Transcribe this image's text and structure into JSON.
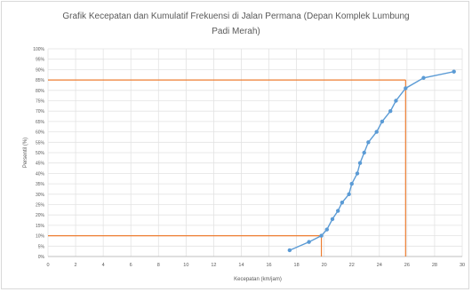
{
  "chart_data": {
    "type": "line",
    "title_lines": [
      "Grafik Kecepatan dan Kumulatif Frekuensi di Jalan Permana (Depan Komplek Lumbung",
      "Padi Merah)"
    ],
    "xlabel": "Kecepatan (km/jam)",
    "ylabel": "Persentil (%)",
    "xlim": [
      0,
      30
    ],
    "ylim": [
      0,
      100
    ],
    "x_ticks": [
      0,
      2,
      4,
      6,
      8,
      10,
      12,
      14,
      16,
      18,
      20,
      22,
      24,
      26,
      28,
      30
    ],
    "y_ticks": [
      0,
      5,
      10,
      15,
      20,
      25,
      30,
      35,
      40,
      45,
      50,
      55,
      60,
      65,
      70,
      75,
      80,
      85,
      90,
      95,
      100
    ],
    "y_tick_labels": [
      "0%",
      "5%",
      "10%",
      "15%",
      "20%",
      "25%",
      "30%",
      "35%",
      "40%",
      "45%",
      "50%",
      "55%",
      "60%",
      "65%",
      "70%",
      "75%",
      "80%",
      "85%",
      "90%",
      "95%",
      "100%"
    ],
    "grid": true,
    "series": [
      {
        "color": "#5b9bd5",
        "x": [
          17.5,
          18.9,
          19.8,
          20.2,
          20.6,
          21.0,
          21.3,
          21.8,
          22.0,
          22.4,
          22.6,
          22.9,
          23.2,
          23.8,
          24.2,
          24.8,
          25.2,
          25.9,
          27.2,
          29.4
        ],
        "y": [
          3,
          7,
          10,
          13,
          18,
          22,
          26,
          30,
          35,
          40,
          45,
          50,
          55,
          60,
          65,
          70,
          75,
          81,
          86,
          89
        ]
      }
    ],
    "reference_lines": [
      {
        "color": "#ed7d31",
        "y": 10,
        "x": 19.8
      },
      {
        "color": "#ed7d31",
        "y": 85,
        "x": 25.9
      }
    ]
  }
}
